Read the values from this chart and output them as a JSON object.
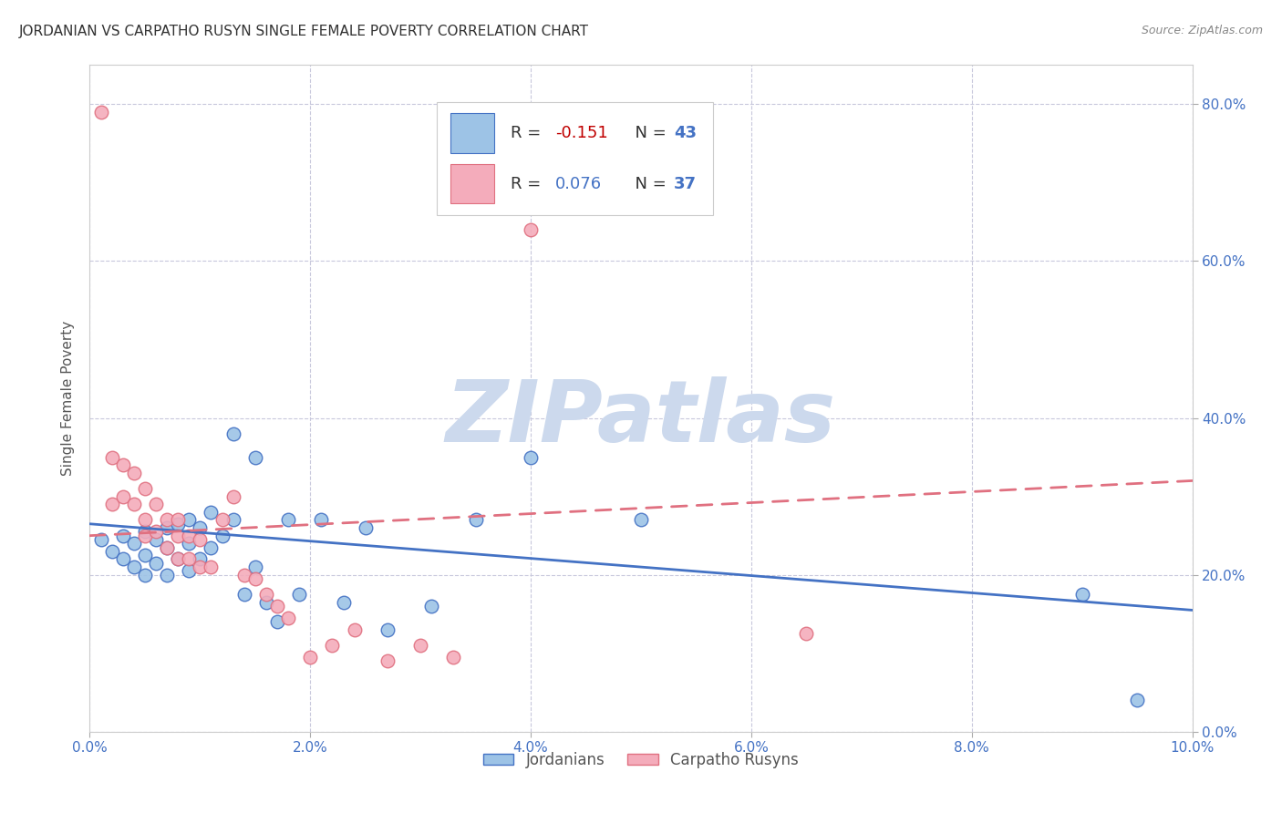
{
  "title": "JORDANIAN VS CARPATHO RUSYN SINGLE FEMALE POVERTY CORRELATION CHART",
  "source": "Source: ZipAtlas.com",
  "ylabel": "Single Female Poverty",
  "xlim": [
    0.0,
    0.1
  ],
  "ylim": [
    0.0,
    0.85
  ],
  "xticks": [
    0.0,
    0.02,
    0.04,
    0.06,
    0.08,
    0.1
  ],
  "yticks": [
    0.0,
    0.2,
    0.4,
    0.6,
    0.8
  ],
  "xtick_labels": [
    "0.0%",
    "2.0%",
    "4.0%",
    "6.0%",
    "8.0%",
    "10.0%"
  ],
  "ytick_labels_right": [
    "0.0%",
    "20.0%",
    "40.0%",
    "60.0%",
    "80.0%"
  ],
  "blue_color": "#9DC3E6",
  "pink_color": "#F4ACBB",
  "blue_edge_color": "#4472C4",
  "pink_edge_color": "#E07080",
  "blue_line_color": "#4472C4",
  "pink_line_color": "#E07080",
  "watermark_text": "ZIPatlas",
  "watermark_color": "#ccd9ed",
  "background_color": "#ffffff",
  "grid_color": "#c8c8dc",
  "legend_r_blue": "-0.151",
  "legend_n_blue": "43",
  "legend_r_pink": "0.076",
  "legend_n_pink": "37",
  "legend_label_blue": "Jordanians",
  "legend_label_pink": "Carpatho Rusyns",
  "blue_scatter_x": [
    0.001,
    0.002,
    0.003,
    0.003,
    0.004,
    0.004,
    0.005,
    0.005,
    0.005,
    0.006,
    0.006,
    0.007,
    0.007,
    0.007,
    0.008,
    0.008,
    0.009,
    0.009,
    0.009,
    0.01,
    0.01,
    0.011,
    0.011,
    0.012,
    0.013,
    0.013,
    0.014,
    0.015,
    0.015,
    0.016,
    0.017,
    0.018,
    0.019,
    0.021,
    0.023,
    0.025,
    0.027,
    0.031,
    0.035,
    0.04,
    0.05,
    0.09,
    0.095
  ],
  "blue_scatter_y": [
    0.245,
    0.23,
    0.25,
    0.22,
    0.24,
    0.21,
    0.255,
    0.225,
    0.2,
    0.245,
    0.215,
    0.26,
    0.235,
    0.2,
    0.265,
    0.22,
    0.27,
    0.24,
    0.205,
    0.26,
    0.22,
    0.28,
    0.235,
    0.25,
    0.38,
    0.27,
    0.175,
    0.35,
    0.21,
    0.165,
    0.14,
    0.27,
    0.175,
    0.27,
    0.165,
    0.26,
    0.13,
    0.16,
    0.27,
    0.35,
    0.27,
    0.175,
    0.04
  ],
  "pink_scatter_x": [
    0.001,
    0.002,
    0.002,
    0.003,
    0.003,
    0.004,
    0.004,
    0.005,
    0.005,
    0.005,
    0.006,
    0.006,
    0.007,
    0.007,
    0.008,
    0.008,
    0.008,
    0.009,
    0.009,
    0.01,
    0.01,
    0.011,
    0.012,
    0.013,
    0.014,
    0.015,
    0.016,
    0.017,
    0.018,
    0.02,
    0.022,
    0.024,
    0.027,
    0.03,
    0.033,
    0.04,
    0.065
  ],
  "pink_scatter_y": [
    0.79,
    0.35,
    0.29,
    0.34,
    0.3,
    0.33,
    0.29,
    0.31,
    0.27,
    0.25,
    0.29,
    0.255,
    0.27,
    0.235,
    0.27,
    0.25,
    0.22,
    0.25,
    0.22,
    0.245,
    0.21,
    0.21,
    0.27,
    0.3,
    0.2,
    0.195,
    0.175,
    0.16,
    0.145,
    0.095,
    0.11,
    0.13,
    0.09,
    0.11,
    0.095,
    0.64,
    0.125
  ],
  "blue_trendline_x": [
    0.0,
    0.1
  ],
  "blue_trendline_y": [
    0.265,
    0.155
  ],
  "pink_trendline_x": [
    0.0,
    0.1
  ],
  "pink_trendline_y": [
    0.25,
    0.32
  ]
}
